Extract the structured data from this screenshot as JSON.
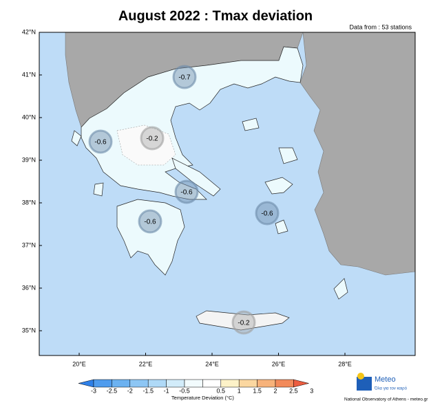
{
  "title": "August 2022 : Tmax deviation",
  "data_note": "Data from : 53 stations",
  "lat_labels": [
    "42°N",
    "41°N",
    "40°N",
    "39°N",
    "38°N",
    "37°N",
    "36°N",
    "35°N"
  ],
  "lon_labels": [
    "20°E",
    "22°E",
    "24°E",
    "26°E",
    "28°E"
  ],
  "regions": [
    {
      "value": -0.7
    },
    {
      "value": -0.6
    },
    {
      "value": -0.2
    },
    {
      "value": -0.6
    },
    {
      "value": -0.6
    },
    {
      "value": -0.6
    },
    {
      "value": -0.2
    }
  ],
  "colorbar": {
    "title": "Temperature Deviation (°C)",
    "ticks": [
      -3,
      -2.5,
      -2,
      -1.5,
      -1,
      -0.5,
      0.5,
      1,
      1.5,
      2,
      2.5,
      3
    ],
    "colors": [
      "#2f80e8",
      "#4f9cee",
      "#6cb2f1",
      "#8dc6f4",
      "#afd9f7",
      "#d2ecfa",
      "#f2fbfd",
      "#ffffff",
      "#fdf2c8",
      "#fbd7a0",
      "#f7b27a",
      "#f28a5a",
      "#ec5d40"
    ]
  },
  "logo": {
    "name": "Meteo",
    "tagline": "Όλα για τον καιρό",
    "footer": "National Observatory of Athens - meteo.gr"
  }
}
